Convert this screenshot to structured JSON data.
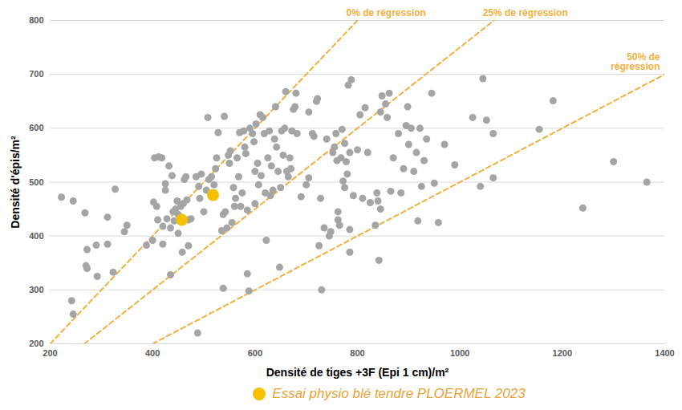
{
  "chart_data": {
    "type": "scatter",
    "x_label": "Densité de tiges +3F (Epi 1 cm)/m²",
    "y_label": "Densité d'épis/m²",
    "xlim": [
      200,
      1400
    ],
    "xticks": [
      200,
      400,
      600,
      800,
      1000,
      1200,
      1400
    ],
    "ylim": [
      200,
      800
    ],
    "yticks": [
      200,
      300,
      400,
      500,
      600,
      700,
      800
    ],
    "grid": "y",
    "legend": "bottom",
    "series": [
      {
        "color": "#a5a5a5",
        "x": [
          222,
          245,
          242,
          245,
          268,
          272,
          270,
          272,
          290,
          292,
          312,
          312,
          323,
          327,
          345,
          350,
          388,
          400,
          404,
          402,
          408,
          410,
          412,
          418,
          420,
          420,
          425,
          425,
          428,
          432,
          435,
          435,
          438,
          440,
          442,
          445,
          448,
          450,
          450,
          455,
          458,
          460,
          462,
          465,
          467,
          470,
          470,
          475,
          485,
          488,
          490,
          492,
          495,
          500,
          505,
          508,
          510,
          515,
          520,
          523,
          525,
          528,
          535,
          538,
          538,
          540,
          542,
          545,
          548,
          550,
          552,
          555,
          558,
          560,
          562,
          565,
          568,
          570,
          572,
          575,
          578,
          580,
          582,
          585,
          585,
          588,
          590,
          595,
          598,
          600,
          600,
          602,
          605,
          607,
          610,
          612,
          615,
          618,
          620,
          622,
          625,
          628,
          630,
          632,
          635,
          638,
          640,
          642,
          645,
          648,
          650,
          652,
          655,
          658,
          660,
          662,
          665,
          668,
          670,
          672,
          675,
          678,
          680,
          682,
          690,
          700,
          705,
          705,
          712,
          715,
          720,
          722,
          725,
          728,
          730,
          735,
          740,
          745,
          748,
          752,
          755,
          758,
          760,
          762,
          762,
          765,
          768,
          770,
          772,
          775,
          775,
          778,
          780,
          782,
          785,
          785,
          785,
          788,
          792,
          800,
          805,
          810,
          815,
          820,
          825,
          835,
          838,
          840,
          842,
          845,
          845,
          848,
          855,
          858,
          862,
          865,
          870,
          880,
          885,
          890,
          895,
          898,
          900,
          905,
          910,
          915,
          918,
          922,
          925,
          930,
          935,
          945,
          950,
          958,
          970,
          990,
          1025,
          1040,
          1045,
          1052,
          1065,
          1065,
          1155,
          1182,
          1240,
          1300,
          1365
        ],
        "y": [
          472,
          465,
          280,
          255,
          443,
          375,
          345,
          340,
          383,
          325,
          435,
          385,
          333,
          487,
          408,
          420,
          383,
          392,
          545,
          463,
          455,
          430,
          547,
          545,
          418,
          385,
          497,
          485,
          432,
          530,
          328,
          415,
          512,
          445,
          428,
          450,
          465,
          405,
          440,
          455,
          370,
          460,
          505,
          510,
          467,
          382,
          430,
          432,
          510,
          220,
          492,
          470,
          515,
          445,
          485,
          620,
          505,
          510,
          495,
          525,
          545,
          592,
          410,
          440,
          303,
          622,
          445,
          415,
          550,
          535,
          558,
          425,
          490,
          455,
          470,
          545,
          510,
          592,
          455,
          480,
          595,
          565,
          553,
          448,
          330,
          298,
          600,
          590,
          575,
          520,
          460,
          608,
          535,
          495,
          625,
          512,
          620,
          590,
          480,
          392,
          545,
          595,
          475,
          530,
          485,
          580,
          640,
          565,
          520,
          342,
          490,
          595,
          550,
          600,
          668,
          520,
          510,
          545,
          525,
          595,
          635,
          640,
          665,
          590,
          473,
          495,
          508,
          630,
          590,
          585,
          650,
          655,
          382,
          470,
          300,
          415,
          580,
          400,
          408,
          555,
          565,
          590,
          540,
          445,
          430,
          420,
          545,
          598,
          502,
          572,
          490,
          538,
          515,
          680,
          412,
          370,
          555,
          690,
          475,
          560,
          625,
          470,
          638,
          555,
          462,
          420,
          480,
          465,
          355,
          450,
          630,
          660,
          645,
          620,
          665,
          483,
          545,
          590,
          480,
          525,
          605,
          640,
          570,
          600,
          520,
          555,
          428,
          600,
          492,
          540,
          580,
          665,
          498,
          425,
          570,
          532,
          620,
          492,
          692,
          615,
          590,
          508,
          598,
          651,
          452,
          538,
          500
        ]
      },
      {
        "name": "Essai physio blé tendre PLOERMEL 2023",
        "color": "#f5c000",
        "x": [
          457,
          518
        ],
        "y": [
          430,
          476
        ]
      }
    ],
    "reference_lines": [
      {
        "label": "0% de régression",
        "color": "#f4b040",
        "line_style": "dashed",
        "x": [
          200,
          800
        ],
        "y": [
          200,
          800
        ]
      },
      {
        "label": "25% de régression",
        "color": "#f4b040",
        "line_style": "dashed",
        "x": [
          266.67,
          1066.67
        ],
        "y": [
          200,
          800
        ]
      },
      {
        "label": "50% de\nrégression",
        "color": "#f4b040",
        "line_style": "dashed",
        "x": [
          400,
          1400
        ],
        "y": [
          200,
          700
        ]
      }
    ]
  }
}
